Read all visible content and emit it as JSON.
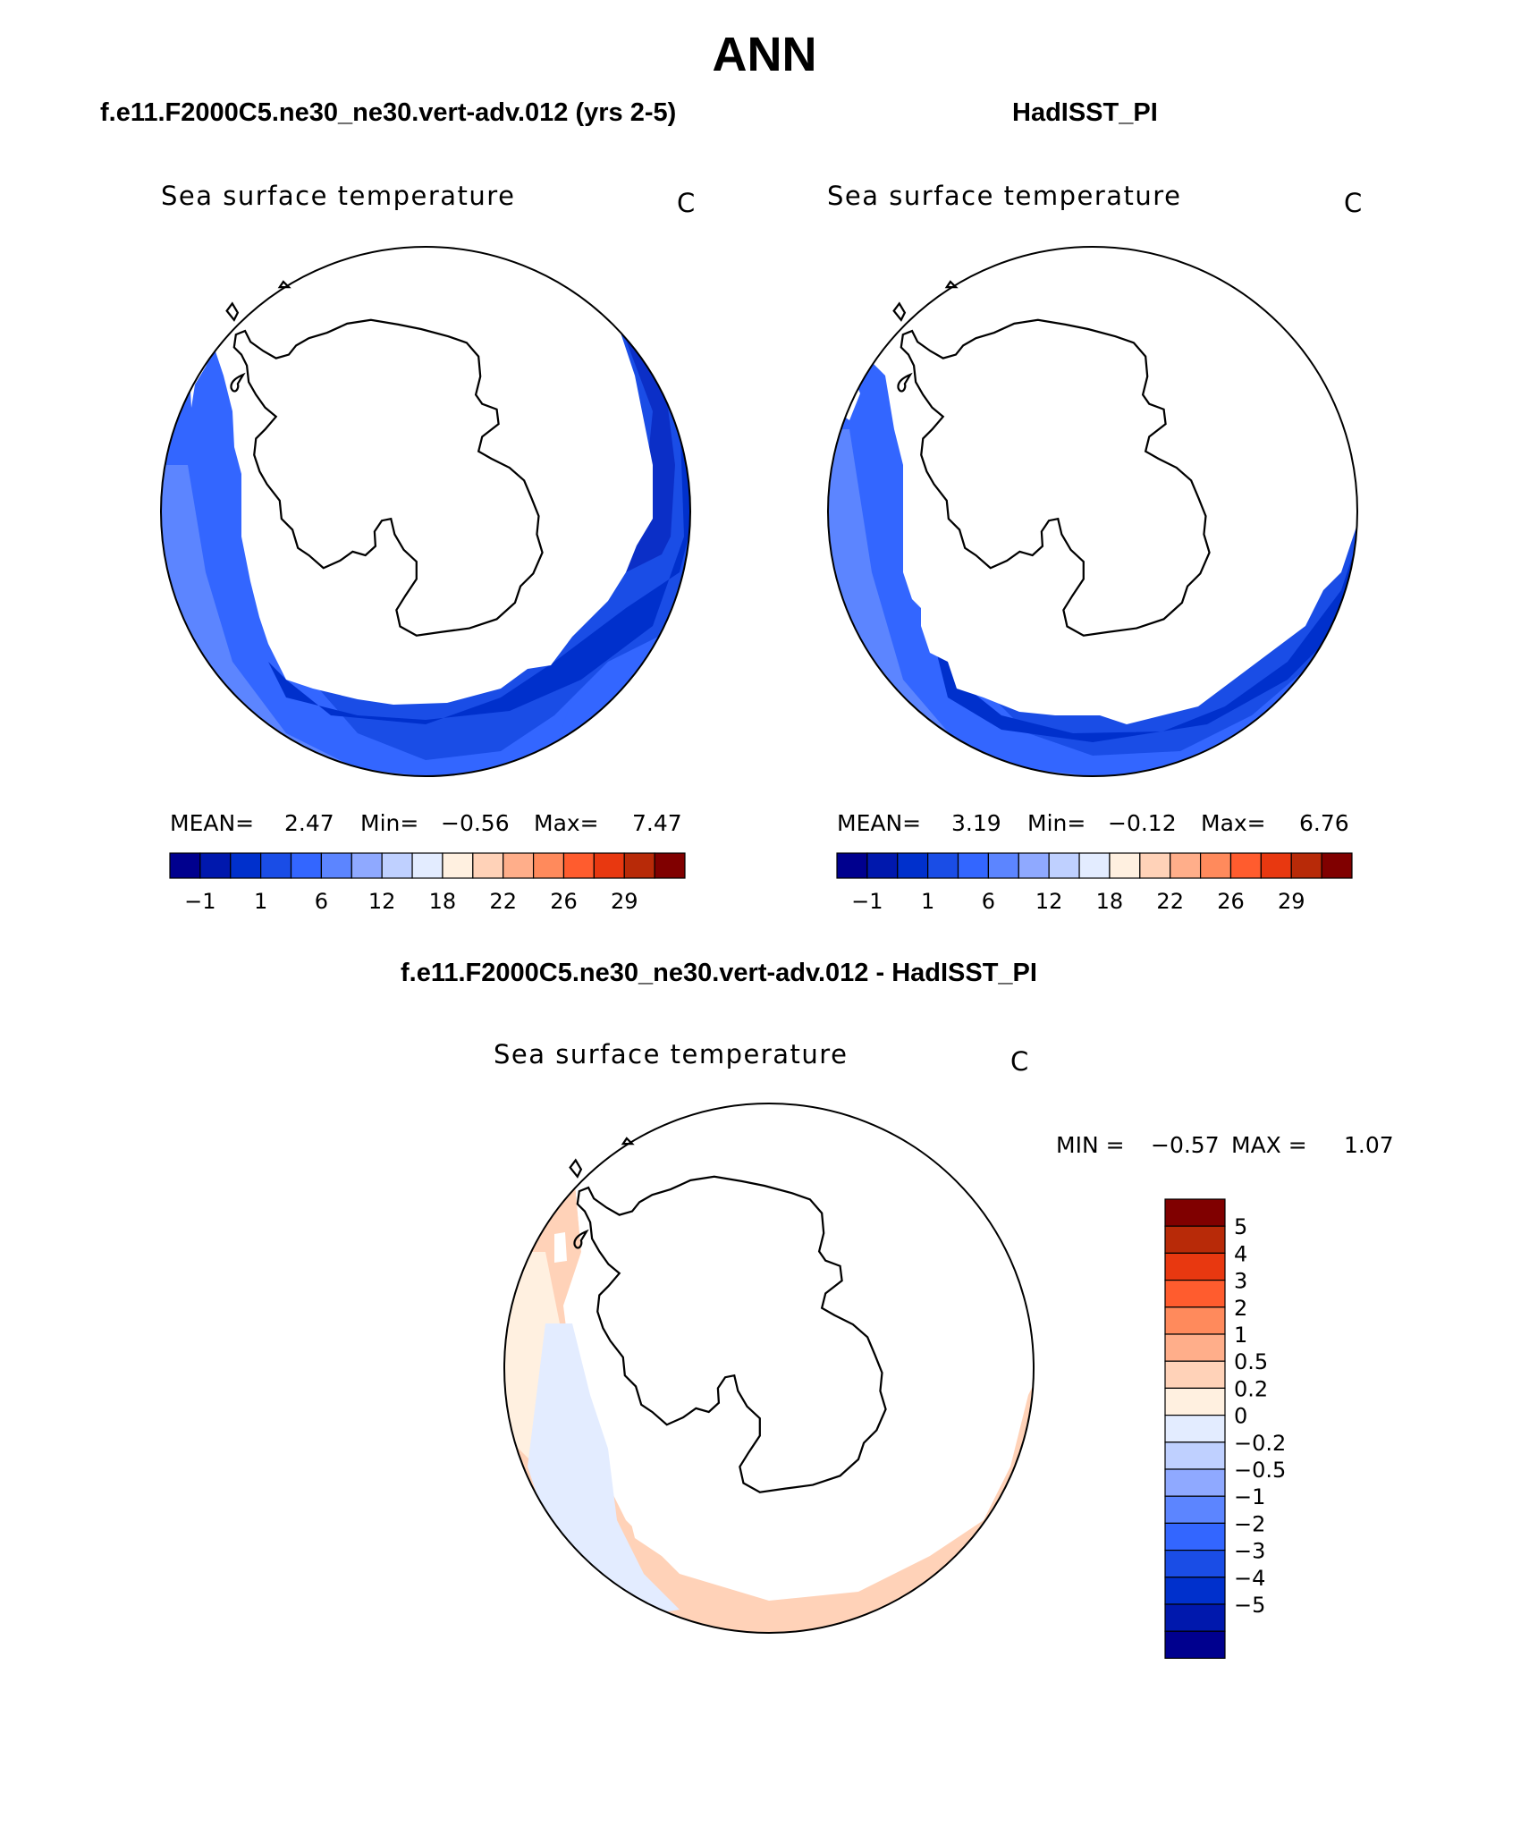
{
  "title": "ANN",
  "panels": [
    {
      "case": "f.e11.F2000C5.ne30_ne30.vert-adv.012 (yrs 2-5)",
      "variable": "Sea surface temperature",
      "units": "C",
      "mean_label": "MEAN=",
      "mean": "2.47",
      "min_label": "Min=",
      "min": "−0.56",
      "max_label": "Max=",
      "max": "7.47"
    },
    {
      "case": "HadISST_PI",
      "variable": "Sea surface temperature",
      "units": "C",
      "mean_label": "MEAN=",
      "mean": "3.19",
      "min_label": "Min=",
      "min": "−0.12",
      "max_label": "Max=",
      "max": "6.76"
    }
  ],
  "diff": {
    "case": "f.e11.F2000C5.ne30_ne30.vert-adv.012 - HadISST_PI",
    "variable": "Sea surface temperature",
    "units": "C",
    "min_label": "MIN =",
    "min": "−0.57",
    "max_label": "MAX =",
    "max": "1.07"
  },
  "colorbar_abs": {
    "colors": [
      "#00008e",
      "#0018ad",
      "#0030cc",
      "#1a4de6",
      "#3366ff",
      "#5c85ff",
      "#8fa9ff",
      "#bfd0ff",
      "#e3ecff",
      "#fff0e0",
      "#ffd2b8",
      "#ffae8a",
      "#ff8a5c",
      "#ff5c2e",
      "#e83810",
      "#b82a08",
      "#800000"
    ],
    "labels": [
      "−1",
      "1",
      "6",
      "12",
      "18",
      "22",
      "26",
      "29"
    ]
  },
  "colorbar_diff": {
    "colors": [
      "#00008e",
      "#0018ad",
      "#0030cc",
      "#1a4de6",
      "#3366ff",
      "#5c85ff",
      "#8fa9ff",
      "#bfd0ff",
      "#e3ecff",
      "#fff0e0",
      "#ffd2b8",
      "#ffae8a",
      "#ff8a5c",
      "#ff5c2e",
      "#e83810",
      "#b82a08",
      "#800000"
    ],
    "labels": [
      "5",
      "4",
      "3",
      "2",
      "1",
      "0.5",
      "0.2",
      "0",
      "−0.2",
      "−0.5",
      "−1",
      "−2",
      "−3",
      "−4",
      "−5"
    ]
  }
}
